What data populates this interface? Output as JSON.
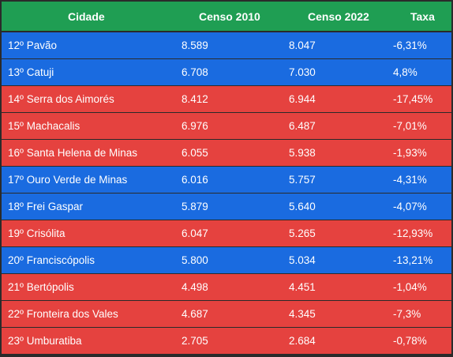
{
  "colors": {
    "header": "#1f9e53",
    "blue": "#1a6be0",
    "red": "#e5423f"
  },
  "table": {
    "headers": [
      "Cidade",
      "Censo 2010",
      "Censo 2022",
      "Taxa"
    ],
    "rows": [
      {
        "cidade": "12º Pavão",
        "censo2010": "8.589",
        "censo2022": "8.047",
        "taxa": "-6,31%",
        "color": "blue"
      },
      {
        "cidade": "13º Catuji",
        "censo2010": "6.708",
        "censo2022": "7.030",
        "taxa": "4,8%",
        "color": "blue"
      },
      {
        "cidade": "14º Serra dos Aimorés",
        "censo2010": "8.412",
        "censo2022": "6.944",
        "taxa": "-17,45%",
        "color": "red"
      },
      {
        "cidade": "15º Machacalis",
        "censo2010": "6.976",
        "censo2022": "6.487",
        "taxa": "-7,01%",
        "color": "red"
      },
      {
        "cidade": "16º Santa Helena de Minas",
        "censo2010": "6.055",
        "censo2022": "5.938",
        "taxa": "-1,93%",
        "color": "red"
      },
      {
        "cidade": "17º Ouro Verde de Minas",
        "censo2010": "6.016",
        "censo2022": "5.757",
        "taxa": "-4,31%",
        "color": "blue"
      },
      {
        "cidade": "18º Frei Gaspar",
        "censo2010": "5.879",
        "censo2022": "5.640",
        "taxa": "-4,07%",
        "color": "blue"
      },
      {
        "cidade": "19º Crisólita",
        "censo2010": "6.047",
        "censo2022": "5.265",
        "taxa": "-12,93%",
        "color": "red"
      },
      {
        "cidade": "20º Franciscópolis",
        "censo2010": "5.800",
        "censo2022": "5.034",
        "taxa": "-13,21%",
        "color": "blue"
      },
      {
        "cidade": "21º Bertópolis",
        "censo2010": "4.498",
        "censo2022": "4.451",
        "taxa": "-1,04%",
        "color": "red"
      },
      {
        "cidade": "22º Fronteira dos Vales",
        "censo2010": "4.687",
        "censo2022": "4.345",
        "taxa": "-7,3%",
        "color": "red"
      },
      {
        "cidade": "23º Umburatiba",
        "censo2010": "2.705",
        "censo2022": "2.684",
        "taxa": "-0,78%",
        "color": "red"
      }
    ]
  }
}
